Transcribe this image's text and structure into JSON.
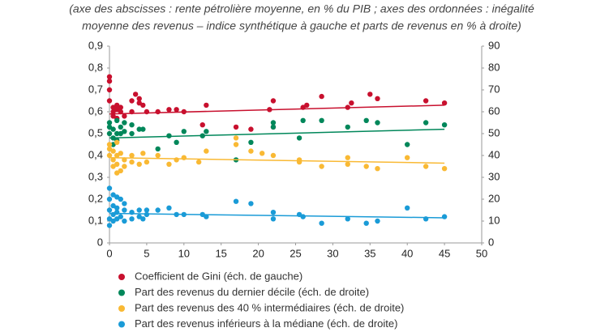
{
  "chart_data": {
    "type": "scatter",
    "subtitle": [
      "(axe des abscisses : rente pétrolière moyenne, en % du PIB ; axes des ordonnées : inégalité",
      "moyenne des revenus – indice synthétique à gauche et parts de revenus en % à droite)"
    ],
    "xlim": [
      0,
      50
    ],
    "xticks": [
      0,
      5,
      10,
      15,
      20,
      25,
      30,
      35,
      40,
      45,
      50
    ],
    "ylim": [
      0,
      0.9
    ],
    "yticks": [
      0,
      {
        "value": 0.1,
        "label": "0,1"
      },
      {
        "value": 0.2,
        "label": "0,2"
      },
      {
        "value": 0.3,
        "label": "0,3"
      },
      {
        "value": 0.4,
        "label": "0,4"
      },
      {
        "value": 0.5,
        "label": "0,5"
      },
      {
        "value": 0.6,
        "label": "0,6"
      },
      {
        "value": 0.7,
        "label": "0,7"
      },
      {
        "value": 0.8,
        "label": "0,8"
      },
      {
        "value": 0.9,
        "label": "0,9"
      }
    ],
    "y2lim": [
      0,
      90
    ],
    "y2ticks": [
      0,
      10,
      20,
      30,
      40,
      50,
      60,
      70,
      80,
      90
    ],
    "series": [
      {
        "name": "Coefficient de Gini (éch. de gauche)",
        "color": "#c8102e",
        "axis": "y",
        "x": [
          0,
          0,
          0,
          0,
          0.5,
          0.5,
          0.5,
          1,
          1,
          1,
          1.5,
          1.5,
          2,
          3,
          3,
          3.5,
          4,
          4,
          4.5,
          5,
          6.5,
          8,
          9,
          10,
          12.5,
          13,
          17,
          19,
          21.5,
          22,
          22,
          26,
          26.5,
          28.5,
          32,
          32.5,
          35,
          36,
          42.5,
          45
        ],
        "values": [
          0.76,
          0.74,
          0.7,
          0.65,
          0.62,
          0.6,
          0.58,
          0.63,
          0.61,
          0.57,
          0.62,
          0.6,
          0.58,
          0.65,
          0.6,
          0.68,
          0.66,
          0.64,
          0.63,
          0.6,
          0.6,
          0.61,
          0.61,
          0.6,
          0.54,
          0.63,
          0.53,
          0.52,
          0.61,
          0.65,
          0.53,
          0.62,
          0.63,
          0.67,
          0.62,
          0.64,
          0.68,
          0.66,
          0.65,
          0.64
        ],
        "trend": {
          "x": [
            0,
            45
          ],
          "values": [
            0.59,
            0.63
          ]
        }
      },
      {
        "name": "Part des revenus du dernier décile (éch. de droite)",
        "color": "#00875a",
        "axis": "y2",
        "x": [
          0,
          0,
          0,
          0.5,
          0.5,
          0.5,
          1,
          1,
          1,
          1.5,
          1.5,
          2,
          2,
          3,
          3,
          4,
          4.5,
          6.5,
          8,
          9,
          10,
          12.5,
          13,
          17,
          19,
          22,
          22,
          25.5,
          26,
          28.5,
          32,
          34.5,
          36,
          40,
          42.5,
          45
        ],
        "values": [
          55,
          53,
          50,
          52,
          48,
          45,
          56,
          50,
          47,
          53,
          50,
          55,
          51,
          54,
          50,
          52,
          52,
          43,
          49,
          46,
          51,
          49,
          51,
          38,
          46,
          53,
          55,
          48,
          56,
          56,
          53,
          56,
          55,
          45,
          55,
          54
        ],
        "trend": {
          "x": [
            0,
            45
          ],
          "values": [
            48,
            52
          ]
        }
      },
      {
        "name": "Part des revenus des 40 % intermédiaires (éch. de droite)",
        "color": "#f9b934",
        "axis": "y2",
        "x": [
          0,
          0,
          0,
          0.5,
          0.5,
          0.5,
          1,
          1,
          1,
          1,
          1.5,
          1.5,
          2,
          2,
          3,
          3,
          4,
          4.5,
          5,
          6.5,
          8,
          9,
          10,
          12,
          13,
          17,
          17,
          19,
          20.5,
          22,
          25.5,
          25.5,
          28.5,
          32,
          32,
          34.5,
          36,
          40,
          42.5,
          45
        ],
        "values": [
          45,
          43,
          40,
          42,
          38,
          35,
          46,
          40,
          36,
          32,
          41,
          33,
          38,
          35,
          40,
          37,
          36,
          41,
          37,
          40,
          36,
          38,
          39,
          37,
          42,
          48,
          45,
          42,
          41,
          40,
          38,
          37,
          35,
          39,
          36,
          35,
          34,
          39,
          35,
          34
        ],
        "trend": {
          "x": [
            0,
            45
          ],
          "values": [
            39,
            36.5
          ]
        }
      },
      {
        "name": "Part des revenus inférieurs à la médiane (éch. de droite)",
        "color": "#1a9bd7",
        "axis": "y2",
        "x": [
          0,
          0,
          0,
          0,
          0,
          0.5,
          0.5,
          0.5,
          0.5,
          1,
          1,
          1,
          1,
          1.5,
          1.5,
          2,
          2,
          2,
          3,
          3,
          4,
          4,
          4.5,
          5,
          5,
          6.5,
          8,
          9,
          10,
          12.5,
          13,
          17,
          19,
          22,
          22,
          25.5,
          26,
          28.5,
          32,
          34.5,
          36,
          40,
          42.5,
          45
        ],
        "values": [
          25,
          20,
          15,
          11,
          8,
          22,
          17,
          13,
          10,
          21,
          16,
          14,
          11,
          20,
          12,
          18,
          15,
          10,
          14,
          11,
          15,
          12,
          11,
          15,
          13,
          15,
          16,
          13,
          13,
          13,
          12,
          19,
          18,
          14,
          11,
          13,
          12,
          9,
          11,
          9,
          10,
          16,
          11,
          12
        ],
        "trend": {
          "x": [
            0,
            45
          ],
          "values": [
            13.5,
            11.5
          ]
        }
      }
    ]
  }
}
